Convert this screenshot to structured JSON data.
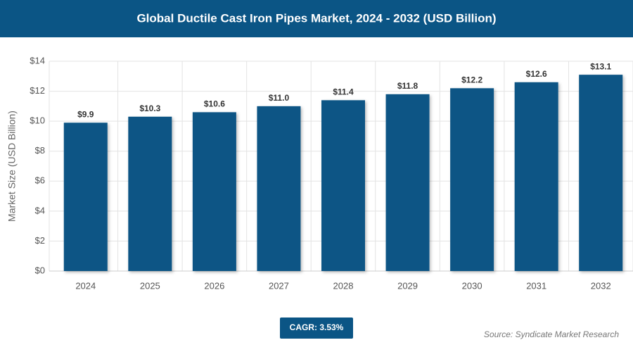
{
  "chart_data": {
    "type": "bar",
    "title": "Global Ductile Cast Iron Pipes Market, 2024 - 2032 (USD Billion)",
    "y_label": "Market Size (USD Billion)",
    "categories": [
      "2024",
      "2025",
      "2026",
      "2027",
      "2028",
      "2029",
      "2030",
      "2031",
      "2032"
    ],
    "values": [
      9.9,
      10.3,
      10.6,
      11.0,
      11.4,
      11.8,
      12.2,
      12.6,
      13.1
    ],
    "value_labels": [
      "$9.9",
      "$10.3",
      "$10.6",
      "$11.0",
      "$11.4",
      "$11.8",
      "$12.2",
      "$12.6",
      "$13.1"
    ],
    "color": "#0b5585",
    "ylim": [
      0,
      14
    ],
    "yticks": [
      {
        "value": 0,
        "label": "$0"
      },
      {
        "value": 2,
        "label": "$2"
      },
      {
        "value": 4,
        "label": "$4"
      },
      {
        "value": 6,
        "label": "$6"
      },
      {
        "value": 8,
        "label": "$8"
      },
      {
        "value": 10,
        "label": "$10"
      },
      {
        "value": 12,
        "label": "$12"
      },
      {
        "value": 14,
        "label": "$14"
      }
    ],
    "grid": true,
    "cagr": "CAGR: 3.53%",
    "source": "Source: Syndicate Market Research"
  }
}
